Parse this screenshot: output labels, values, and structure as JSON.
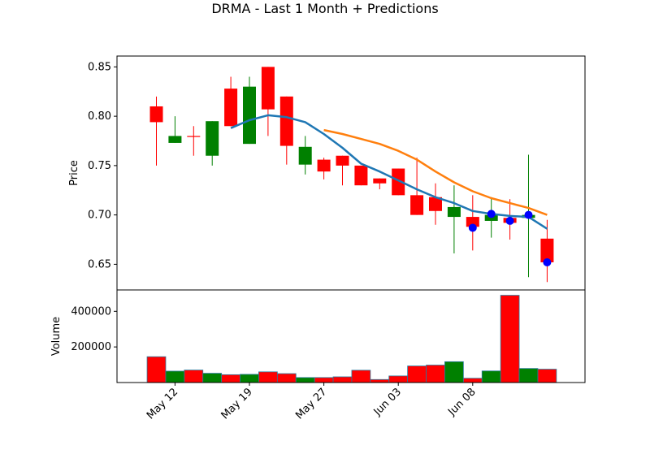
{
  "chart_data": {
    "type": "candlestick",
    "title": "DRMA - Last 1 Month + Predictions",
    "colors": {
      "up": "#008000",
      "down": "#ff0000",
      "ma_short": "#1f77b4",
      "ma_long": "#ff7f0e",
      "prediction": "#0000ff"
    },
    "price_panel": {
      "ylabel": "Price",
      "ylim": [
        0.624,
        0.861
      ],
      "yticks": [
        0.65,
        0.7,
        0.75,
        0.8,
        0.85
      ],
      "ytick_labels": [
        "0.65",
        "0.70",
        "0.75",
        "0.80",
        "0.85"
      ]
    },
    "volume_panel": {
      "ylabel": "Volume",
      "ylim": [
        0,
        520000
      ],
      "yticks": [
        200000,
        400000
      ],
      "ytick_labels": [
        "200000",
        "400000"
      ]
    },
    "xaxis": {
      "ticks": [
        1,
        5,
        9,
        13,
        17
      ],
      "tick_labels": [
        "May 12",
        "May 19",
        "May 27",
        "Jun 03",
        "Jun 08"
      ]
    },
    "candles": [
      {
        "o": 0.81,
        "h": 0.82,
        "l": 0.75,
        "c": 0.794
      },
      {
        "o": 0.773,
        "h": 0.8,
        "l": 0.773,
        "c": 0.78
      },
      {
        "o": 0.78,
        "h": 0.79,
        "l": 0.76,
        "c": 0.779
      },
      {
        "o": 0.76,
        "h": 0.795,
        "l": 0.75,
        "c": 0.795
      },
      {
        "o": 0.828,
        "h": 0.84,
        "l": 0.79,
        "c": 0.79
      },
      {
        "o": 0.772,
        "h": 0.84,
        "l": 0.772,
        "c": 0.83
      },
      {
        "o": 0.85,
        "h": 0.85,
        "l": 0.78,
        "c": 0.807
      },
      {
        "o": 0.82,
        "h": 0.82,
        "l": 0.751,
        "c": 0.77
      },
      {
        "o": 0.751,
        "h": 0.78,
        "l": 0.741,
        "c": 0.769
      },
      {
        "o": 0.756,
        "h": 0.758,
        "l": 0.736,
        "c": 0.744
      },
      {
        "o": 0.76,
        "h": 0.76,
        "l": 0.73,
        "c": 0.75
      },
      {
        "o": 0.75,
        "h": 0.75,
        "l": 0.73,
        "c": 0.73
      },
      {
        "o": 0.737,
        "h": 0.737,
        "l": 0.726,
        "c": 0.732
      },
      {
        "o": 0.747,
        "h": 0.747,
        "l": 0.72,
        "c": 0.72
      },
      {
        "o": 0.72,
        "h": 0.758,
        "l": 0.7,
        "c": 0.7
      },
      {
        "o": 0.718,
        "h": 0.732,
        "l": 0.69,
        "c": 0.704
      },
      {
        "o": 0.698,
        "h": 0.73,
        "l": 0.661,
        "c": 0.708
      },
      {
        "o": 0.698,
        "h": 0.72,
        "l": 0.664,
        "c": 0.688
      },
      {
        "o": 0.694,
        "h": 0.718,
        "l": 0.677,
        "c": 0.7
      },
      {
        "o": 0.697,
        "h": 0.716,
        "l": 0.675,
        "c": 0.692
      },
      {
        "o": 0.697,
        "h": 0.761,
        "l": 0.637,
        "c": 0.7
      },
      {
        "o": 0.676,
        "h": 0.695,
        "l": 0.632,
        "c": 0.652
      }
    ],
    "ma_short": [
      {
        "i": 4,
        "v": 0.788
      },
      {
        "i": 5,
        "v": 0.796
      },
      {
        "i": 6,
        "v": 0.801
      },
      {
        "i": 7,
        "v": 0.799
      },
      {
        "i": 8,
        "v": 0.794
      },
      {
        "i": 9,
        "v": 0.782
      },
      {
        "i": 10,
        "v": 0.768
      },
      {
        "i": 11,
        "v": 0.752
      },
      {
        "i": 12,
        "v": 0.744
      },
      {
        "i": 13,
        "v": 0.735
      },
      {
        "i": 14,
        "v": 0.726
      },
      {
        "i": 15,
        "v": 0.718
      },
      {
        "i": 16,
        "v": 0.712
      },
      {
        "i": 17,
        "v": 0.704
      },
      {
        "i": 18,
        "v": 0.701
      },
      {
        "i": 19,
        "v": 0.699
      },
      {
        "i": 20,
        "v": 0.698
      },
      {
        "i": 21,
        "v": 0.686
      }
    ],
    "ma_long": [
      {
        "i": 9,
        "v": 0.786
      },
      {
        "i": 10,
        "v": 0.782
      },
      {
        "i": 11,
        "v": 0.777
      },
      {
        "i": 12,
        "v": 0.772
      },
      {
        "i": 13,
        "v": 0.765
      },
      {
        "i": 14,
        "v": 0.756
      },
      {
        "i": 15,
        "v": 0.744
      },
      {
        "i": 16,
        "v": 0.733
      },
      {
        "i": 17,
        "v": 0.724
      },
      {
        "i": 18,
        "v": 0.717
      },
      {
        "i": 19,
        "v": 0.712
      },
      {
        "i": 20,
        "v": 0.707
      },
      {
        "i": 21,
        "v": 0.7
      }
    ],
    "predictions": [
      {
        "i": 17,
        "v": 0.687
      },
      {
        "i": 18,
        "v": 0.701
      },
      {
        "i": 19,
        "v": 0.694
      },
      {
        "i": 20,
        "v": 0.7
      },
      {
        "i": 21,
        "v": 0.652
      }
    ],
    "volumes": [
      {
        "v": 145000,
        "up": false
      },
      {
        "v": 64000,
        "up": true
      },
      {
        "v": 70000,
        "up": false
      },
      {
        "v": 52000,
        "up": true
      },
      {
        "v": 44000,
        "up": false
      },
      {
        "v": 46000,
        "up": true
      },
      {
        "v": 60000,
        "up": false
      },
      {
        "v": 50000,
        "up": false
      },
      {
        "v": 28000,
        "up": true
      },
      {
        "v": 28000,
        "up": false
      },
      {
        "v": 32000,
        "up": false
      },
      {
        "v": 69000,
        "up": false
      },
      {
        "v": 17000,
        "up": false
      },
      {
        "v": 37000,
        "up": false
      },
      {
        "v": 93000,
        "up": false
      },
      {
        "v": 98000,
        "up": false
      },
      {
        "v": 117000,
        "up": true
      },
      {
        "v": 24000,
        "up": false
      },
      {
        "v": 65000,
        "up": true
      },
      {
        "v": 490000,
        "up": false
      },
      {
        "v": 79000,
        "up": true
      },
      {
        "v": 75000,
        "up": false
      }
    ]
  }
}
